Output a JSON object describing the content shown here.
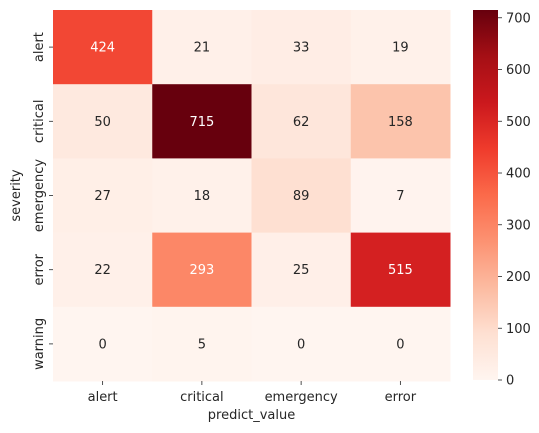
{
  "chart_data": {
    "type": "heatmap",
    "title": "",
    "xlabel": "predict_value",
    "ylabel": "severity",
    "x_categories": [
      "alert",
      "critical",
      "emergency",
      "error"
    ],
    "y_categories": [
      "alert",
      "critical",
      "emergency",
      "error",
      "warning"
    ],
    "values": [
      [
        424,
        21,
        33,
        19
      ],
      [
        50,
        715,
        62,
        158
      ],
      [
        27,
        18,
        89,
        7
      ],
      [
        22,
        293,
        25,
        515
      ],
      [
        0,
        5,
        0,
        0
      ]
    ],
    "colormap": "Reds",
    "colorbar": {
      "range": [
        0,
        715
      ],
      "ticks": [
        0,
        100,
        200,
        300,
        400,
        500,
        600,
        700
      ]
    },
    "colors": {
      "low": "#fff5f0",
      "high": "#67000d",
      "text_dark": "#262626",
      "text_light": "#ffffff"
    }
  }
}
